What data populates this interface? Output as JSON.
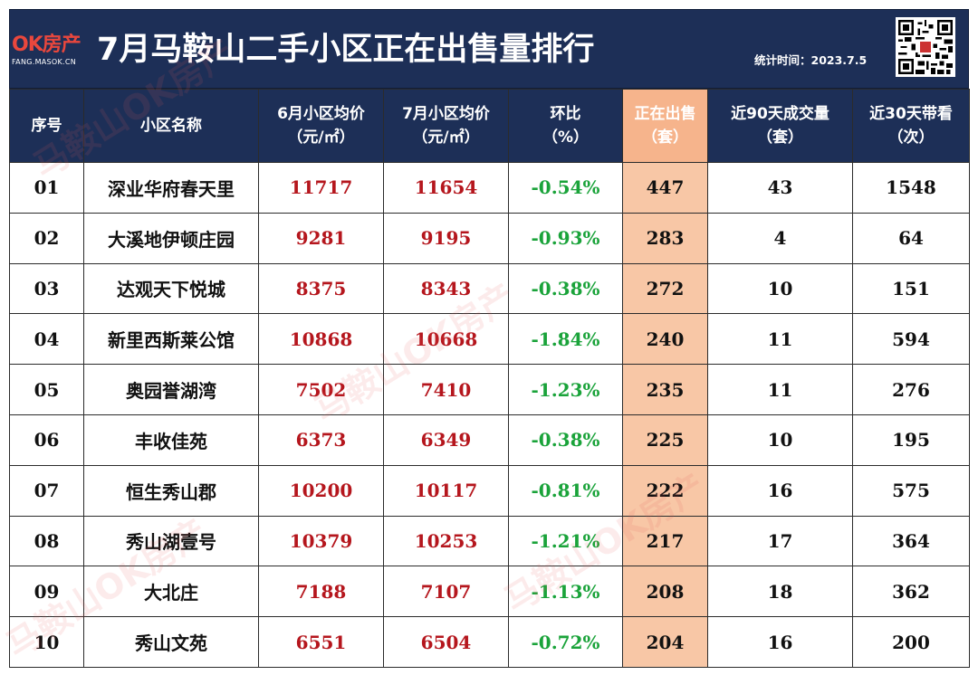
{
  "header": {
    "logo_mark": "OK房产",
    "logo_sub": "FANG.MASOK.CN",
    "title": "7月马鞍山二手小区正在出售量排行",
    "stat_time": "统计时间：2023.7.5"
  },
  "watermark": "马鞍山OK房产",
  "colors": {
    "header_bg": "#1d2f57",
    "highlight_column": "#f8c7a6",
    "price_text": "#b5161d",
    "change_text": "#1aa33a",
    "logo_red": "#e9473d"
  },
  "columns": [
    {
      "line1": "序号",
      "line2": ""
    },
    {
      "line1": "小区名称",
      "line2": ""
    },
    {
      "line1": "6月小区均价",
      "line2": "（元/㎡）"
    },
    {
      "line1": "7月小区均价",
      "line2": "（元/㎡）"
    },
    {
      "line1": "环比",
      "line2": "（%）"
    },
    {
      "line1": "正在出售",
      "line2": "（套）"
    },
    {
      "line1": "近90天成交量",
      "line2": "（套）"
    },
    {
      "line1": "近30天带看",
      "line2": "（次）"
    }
  ],
  "rows": [
    [
      "01",
      "深业华府春天里",
      "11717",
      "11654",
      "-0.54%",
      "447",
      "43",
      "1548"
    ],
    [
      "02",
      "大溪地伊顿庄园",
      "9281",
      "9195",
      "-0.93%",
      "283",
      "4",
      "64"
    ],
    [
      "03",
      "达观天下悦城",
      "8375",
      "8343",
      "-0.38%",
      "272",
      "10",
      "151"
    ],
    [
      "04",
      "新里西斯莱公馆",
      "10868",
      "10668",
      "-1.84%",
      "240",
      "11",
      "594"
    ],
    [
      "05",
      "奥园誉湖湾",
      "7502",
      "7410",
      "-1.23%",
      "235",
      "11",
      "276"
    ],
    [
      "06",
      "丰收佳苑",
      "6373",
      "6349",
      "-0.38%",
      "225",
      "10",
      "195"
    ],
    [
      "07",
      "恒生秀山郡",
      "10200",
      "10117",
      "-0.81%",
      "222",
      "16",
      "575"
    ],
    [
      "08",
      "秀山湖壹号",
      "10379",
      "10253",
      "-1.21%",
      "217",
      "17",
      "364"
    ],
    [
      "09",
      "大北庄",
      "7188",
      "7107",
      "-1.13%",
      "208",
      "18",
      "362"
    ],
    [
      "10",
      "秀山文苑",
      "6551",
      "6504",
      "-0.72%",
      "204",
      "16",
      "200"
    ]
  ]
}
